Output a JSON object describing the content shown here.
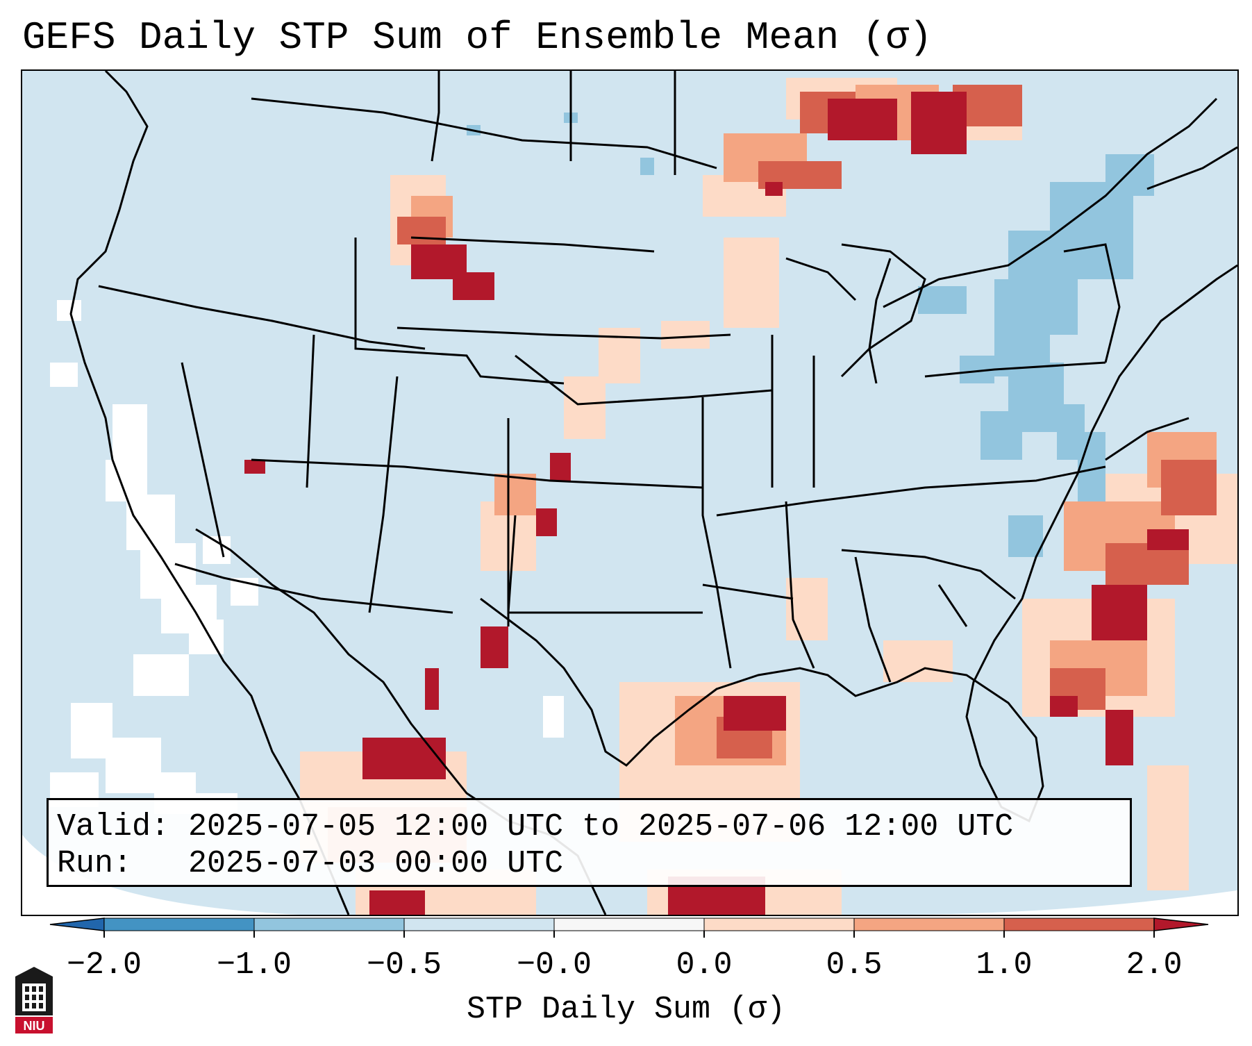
{
  "title": "GEFS Daily STP Sum of Ensemble Mean (σ)",
  "info": {
    "valid_label": "Valid:",
    "valid_value": "2025-07-05 12:00 UTC to 2025-07-06 12:00 UTC",
    "run_label": "Run:",
    "run_value": "2025-07-03 00:00 UTC"
  },
  "colorbar": {
    "label": "STP Daily Sum (σ)",
    "ticks": [
      "−2.0",
      "−1.0",
      "−0.5",
      "−0.0",
      "0.0",
      "0.5",
      "1.0",
      "2.0"
    ],
    "colors": {
      "extend_low": "#2166ac",
      "bin_neg2_neg1": "#4393c3",
      "bin_neg1_neg05": "#92c5de",
      "bin_neg05_0": "#d1e5f0",
      "bin_zero": "#f7f7f7",
      "bin_0_05": "#fddbc7",
      "bin_05_1": "#f4a582",
      "bin_1_2": "#d6604d",
      "extend_high": "#b2182b"
    }
  },
  "logo": {
    "text": "NIU"
  }
}
